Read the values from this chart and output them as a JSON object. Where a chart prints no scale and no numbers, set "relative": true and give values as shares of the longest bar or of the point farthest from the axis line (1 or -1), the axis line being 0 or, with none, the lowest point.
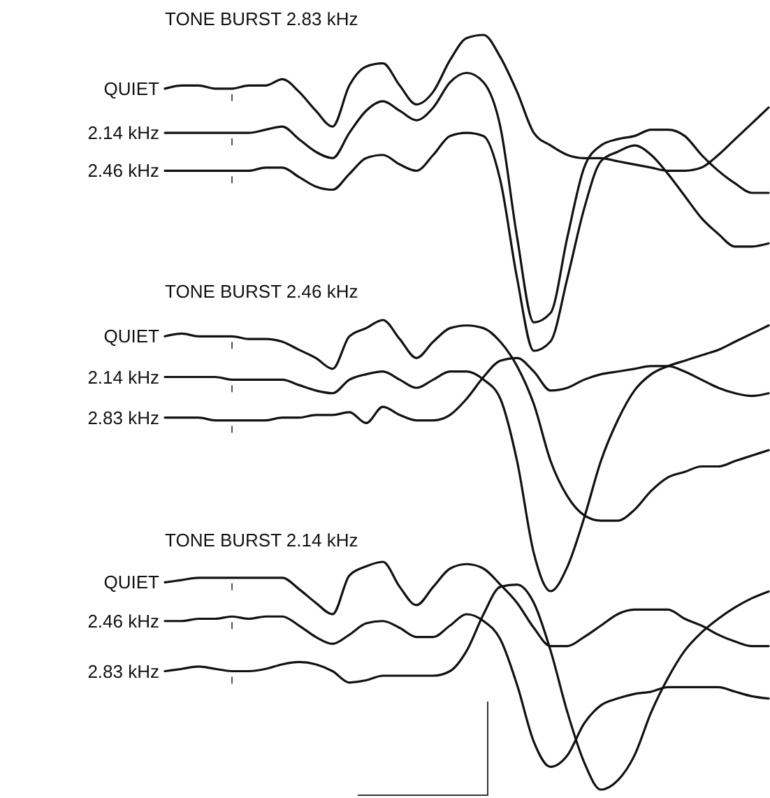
{
  "chart_data": [
    {
      "type": "line",
      "title": "TONE BURST 2.83 kHz",
      "relative": true,
      "categories": [
        null,
        null,
        null,
        null,
        null,
        null,
        null,
        null,
        null,
        null,
        null,
        null,
        null,
        null,
        null,
        null,
        null,
        null,
        null,
        null,
        null,
        null,
        null,
        null,
        null,
        null,
        null,
        null,
        null,
        null,
        null,
        null,
        null,
        null,
        null,
        null,
        null
      ],
      "series": [
        {
          "name": "QUIET",
          "color": "#111111",
          "values": [
            0.83,
            0.84,
            0.84,
            0.83,
            0.83,
            0.84,
            0.84,
            0.86,
            0.82,
            0.76,
            0.71,
            0.84,
            0.9,
            0.91,
            0.84,
            0.78,
            0.82,
            0.92,
            0.99,
            1,
            0.93,
            0.82,
            0.69,
            0.65,
            0.62,
            0.61,
            0.61,
            0.6,
            0.59,
            0.58,
            0.57,
            0.57,
            0.58,
            0.62,
            0.67,
            0.72,
            0.77
          ]
        },
        {
          "name": "2.14 kHz",
          "color": "#111111",
          "values": [
            0.69,
            0.69,
            0.69,
            0.69,
            0.69,
            0.69,
            0.7,
            0.71,
            0.67,
            0.63,
            0.61,
            0.69,
            0.76,
            0.79,
            0.76,
            0.73,
            0.77,
            0.85,
            0.88,
            0.85,
            0.71,
            0.36,
            0.09,
            0.12,
            0.36,
            0.58,
            0.65,
            0.67,
            0.68,
            0.7,
            0.7,
            0.68,
            0.62,
            0.57,
            0.53,
            0.5,
            0.5
          ]
        },
        {
          "name": "2.46 kHz",
          "color": "#111111",
          "values": [
            0.57,
            0.57,
            0.57,
            0.57,
            0.57,
            0.57,
            0.58,
            0.58,
            0.55,
            0.52,
            0.51,
            0.56,
            0.61,
            0.62,
            0.59,
            0.57,
            0.62,
            0.68,
            0.69,
            0.68,
            0.54,
            0.23,
            0,
            0.03,
            0.23,
            0.45,
            0.6,
            0.63,
            0.65,
            0.62,
            0.56,
            0.49,
            0.42,
            0.37,
            0.33,
            0.33,
            0.34
          ]
        }
      ]
    },
    {
      "type": "line",
      "title": "TONE BURST 2.46 kHz",
      "relative": true,
      "categories": [
        null,
        null,
        null,
        null,
        null,
        null,
        null,
        null,
        null,
        null,
        null,
        null,
        null,
        null,
        null,
        null,
        null,
        null,
        null,
        null,
        null,
        null,
        null,
        null,
        null,
        null,
        null,
        null,
        null,
        null,
        null,
        null,
        null,
        null,
        null,
        null,
        null
      ],
      "series": [
        {
          "name": "QUIET",
          "color": "#111111",
          "values": [
            0.94,
            0.95,
            0.94,
            0.94,
            0.94,
            0.93,
            0.93,
            0.92,
            0.89,
            0.86,
            0.82,
            0.94,
            0.97,
            1,
            0.93,
            0.86,
            0.92,
            0.97,
            0.98,
            0.97,
            0.92,
            0.83,
            0.69,
            0.48,
            0.35,
            0.28,
            0.26,
            0.26,
            0.3,
            0.37,
            0.42,
            0.44,
            0.46,
            0.46,
            0.48,
            0.5,
            0.52
          ]
        },
        {
          "name": "2.14 kHz",
          "color": "#111111",
          "values": [
            0.79,
            0.79,
            0.79,
            0.79,
            0.78,
            0.78,
            0.78,
            0.78,
            0.76,
            0.74,
            0.73,
            0.78,
            0.8,
            0.81,
            0.78,
            0.75,
            0.78,
            0.81,
            0.81,
            0.78,
            0.71,
            0.48,
            0.14,
            0,
            0.09,
            0.27,
            0.48,
            0.63,
            0.74,
            0.8,
            0.83,
            0.85,
            0.87,
            0.89,
            0.92,
            0.95,
            0.98
          ]
        },
        {
          "name": "2.83 kHz",
          "color": "#111111",
          "values": [
            0.64,
            0.64,
            0.64,
            0.63,
            0.63,
            0.63,
            0.63,
            0.64,
            0.64,
            0.65,
            0.65,
            0.66,
            0.62,
            0.68,
            0.65,
            0.63,
            0.63,
            0.65,
            0.71,
            0.79,
            0.85,
            0.86,
            0.81,
            0.74,
            0.75,
            0.78,
            0.8,
            0.81,
            0.82,
            0.83,
            0.83,
            0.81,
            0.78,
            0.75,
            0.73,
            0.72,
            0.73
          ]
        }
      ]
    },
    {
      "type": "line",
      "title": "TONE BURST 2.14 kHz",
      "relative": true,
      "categories": [
        null,
        null,
        null,
        null,
        null,
        null,
        null,
        null,
        null,
        null,
        null,
        null,
        null,
        null,
        null,
        null,
        null,
        null,
        null,
        null,
        null,
        null,
        null,
        null,
        null,
        null,
        null,
        null,
        null,
        null,
        null,
        null,
        null,
        null,
        null,
        null,
        null
      ],
      "series": [
        {
          "name": "QUIET",
          "color": "#111111",
          "values": [
            0.91,
            0.92,
            0.93,
            0.93,
            0.93,
            0.93,
            0.93,
            0.93,
            0.88,
            0.82,
            0.77,
            0.94,
            0.98,
            1,
            0.89,
            0.81,
            0.89,
            0.97,
            0.99,
            0.97,
            0.9,
            0.82,
            0.71,
            0.63,
            0.63,
            0.67,
            0.72,
            0.77,
            0.79,
            0.79,
            0.79,
            0.75,
            0.72,
            0.68,
            0.65,
            0.63,
            0.63
          ]
        },
        {
          "name": "2.46 kHz",
          "color": "#111111",
          "values": [
            0.74,
            0.74,
            0.75,
            0.75,
            0.76,
            0.75,
            0.76,
            0.76,
            0.72,
            0.67,
            0.64,
            0.68,
            0.73,
            0.74,
            0.71,
            0.67,
            0.67,
            0.72,
            0.77,
            0.74,
            0.66,
            0.46,
            0.21,
            0.1,
            0.15,
            0.29,
            0.37,
            0.4,
            0.42,
            0.43,
            0.45,
            0.45,
            0.45,
            0.45,
            0.43,
            0.41,
            0.4
          ]
        },
        {
          "name": "2.83 kHz",
          "color": "#111111",
          "values": [
            0.52,
            0.53,
            0.54,
            0.53,
            0.52,
            0.52,
            0.53,
            0.55,
            0.56,
            0.55,
            0.52,
            0.47,
            0.48,
            0.5,
            0.5,
            0.5,
            0.5,
            0.52,
            0.61,
            0.77,
            0.89,
            0.9,
            0.82,
            0.61,
            0.34,
            0.12,
            0,
            0.04,
            0.15,
            0.34,
            0.49,
            0.61,
            0.69,
            0.75,
            0.8,
            0.84,
            0.87
          ]
        }
      ]
    }
  ]
}
